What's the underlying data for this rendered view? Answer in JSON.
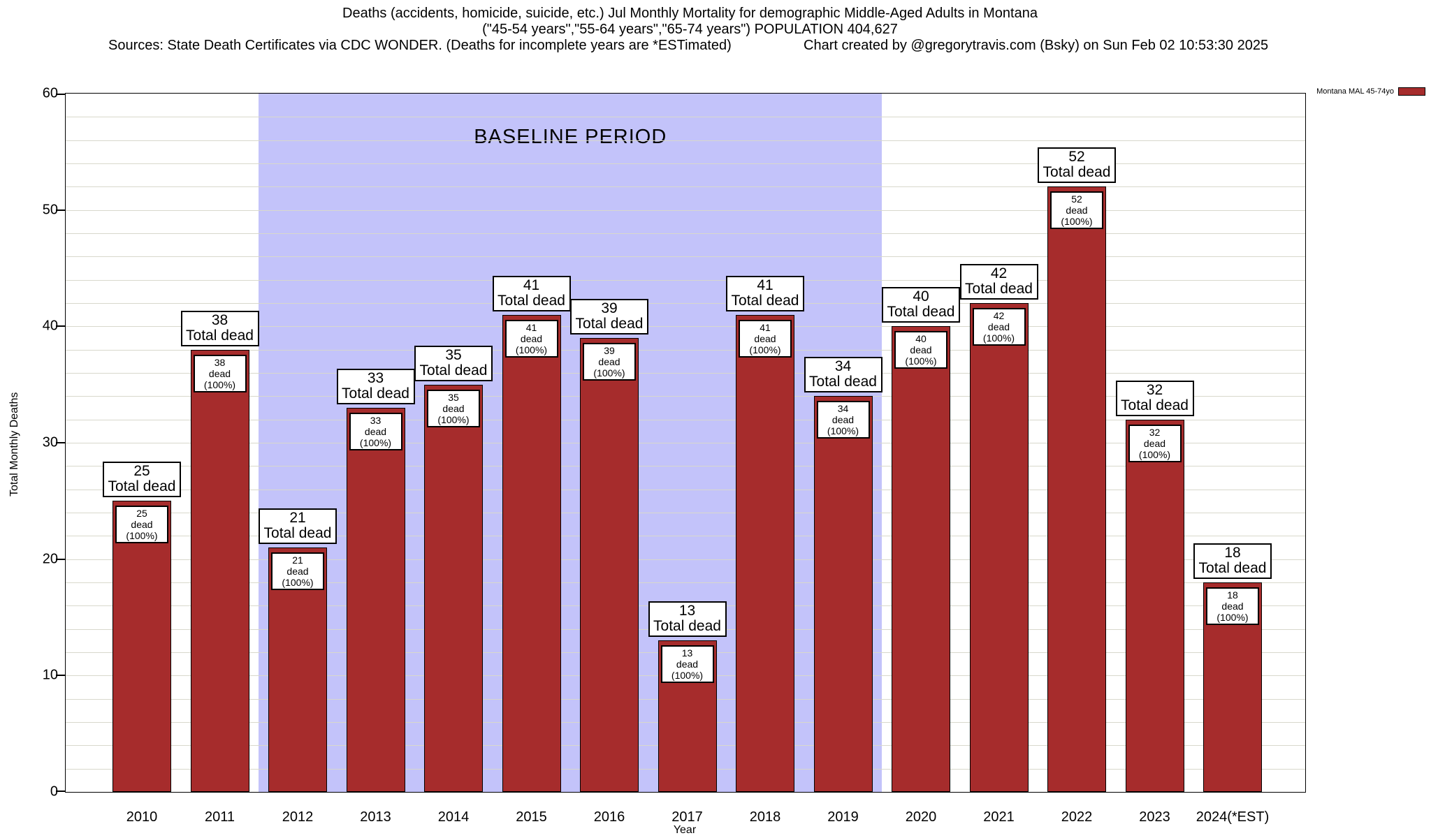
{
  "header": {
    "title_line1": "Deaths (accidents, homicide, suicide, etc.) Jul Monthly Mortality for demographic Middle-Aged Adults in Montana",
    "title_line2": "(\"45-54 years\",\"55-64 years\",\"65-74 years\") POPULATION 404,627",
    "sources": "Sources: State Death Certificates via CDC WONDER. (Deaths for incomplete years are *ESTimated)",
    "credit": "Chart created by @gregorytravis.com (Bsky) on Sun Feb 02 10:53:30 2025"
  },
  "chart_data": {
    "type": "bar",
    "title": "Deaths (accidents, homicide, suicide, etc.) Jul Monthly Mortality for demographic Middle-Aged Adults in Montana",
    "categories": [
      "2010",
      "2011",
      "2012",
      "2013",
      "2014",
      "2015",
      "2016",
      "2017",
      "2018",
      "2019",
      "2020",
      "2021",
      "2022",
      "2023",
      "2024(*EST)"
    ],
    "values": [
      25,
      38,
      21,
      33,
      35,
      41,
      39,
      13,
      41,
      34,
      40,
      42,
      52,
      32,
      18
    ],
    "bar_top_label_suffix": "Total dead",
    "bar_inner_label_suffix": "dead (100%)",
    "xlabel": "Year",
    "ylabel": "Total Monthly Deaths",
    "ylim": [
      0,
      60
    ],
    "yticks": [
      0,
      10,
      20,
      30,
      40,
      50,
      60
    ],
    "minor_grid_step": 2,
    "grid": "on",
    "baseline": {
      "label": "BASELINE PERIOD",
      "start_category": "2012",
      "end_category": "2019",
      "start_index": 2,
      "end_index": 9,
      "color": "#c3c3fa"
    },
    "legend": {
      "label": "Montana MAL 45-74yo",
      "position": "top-right",
      "color": "#a62c2c"
    },
    "bar_color": "#a62c2c",
    "bar_border_color": "#000000",
    "grid_color": "#d8d8cc"
  }
}
